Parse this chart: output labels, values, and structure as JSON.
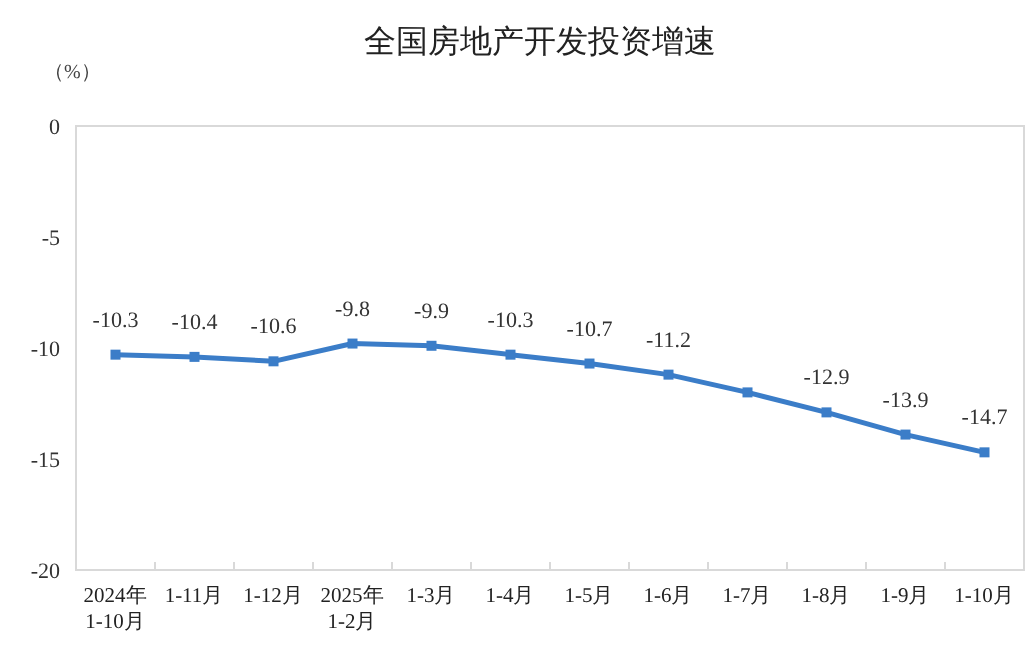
{
  "chart_data": {
    "type": "line",
    "title": "全国房地产开发投资增速",
    "ylabel": "（%）",
    "categories": [
      "2024年\n1-10月",
      "1-11月",
      "1-12月",
      "2025年\n1-2月",
      "1-3月",
      "1-4月",
      "1-5月",
      "1-6月",
      "1-7月",
      "1-8月",
      "1-9月",
      "1-10月"
    ],
    "values": [
      -10.3,
      -10.4,
      -10.6,
      -9.8,
      -9.9,
      -10.3,
      -10.7,
      -11.2,
      -12.0,
      -12.9,
      -13.9,
      -14.7
    ],
    "value_labels": [
      "-10.3",
      "-10.4",
      "-10.6",
      "-9.8",
      "-9.9",
      "-10.3",
      "-10.7",
      "-11.2",
      null,
      "-12.9",
      "-13.9",
      "-14.7"
    ],
    "color": "#3b7dc8",
    "ylim": [
      -20,
      0
    ],
    "yticks": [
      0,
      -5,
      -10,
      -15,
      -20
    ],
    "grid": false,
    "marker": "square",
    "line_style": "solid"
  }
}
